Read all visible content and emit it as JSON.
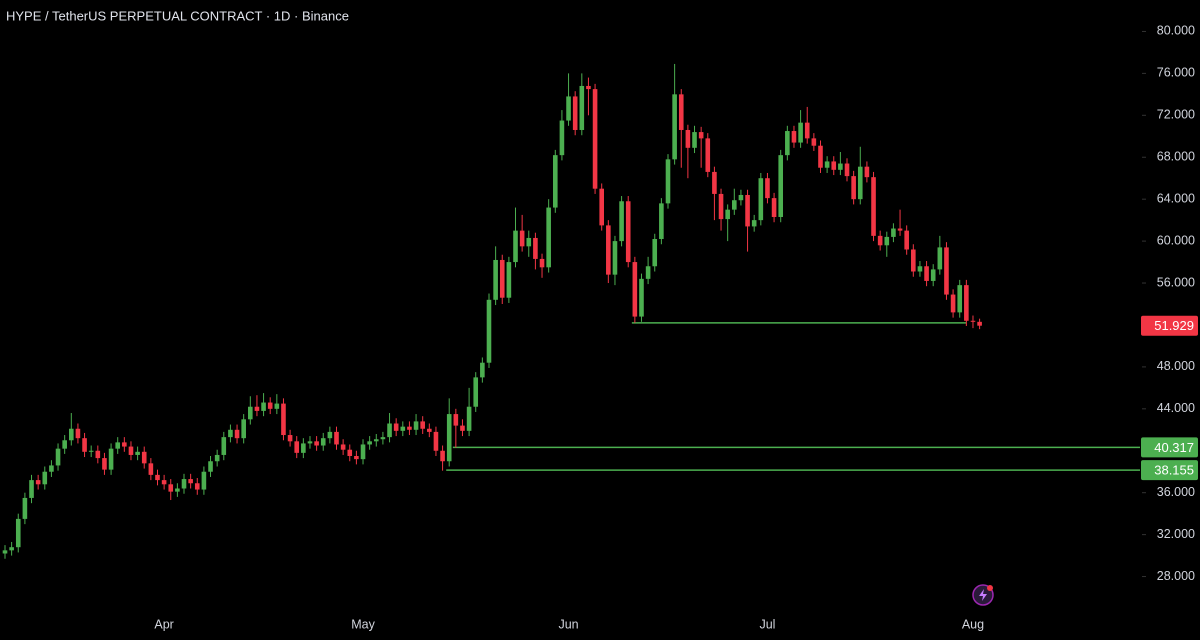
{
  "chart_data": {
    "type": "candlestick",
    "title": "HYPE / TetherUS PERPETUAL CONTRACT · 1D · Binance",
    "categories": [
      null,
      null,
      null,
      null,
      null,
      null,
      null,
      null,
      null,
      null,
      null,
      null,
      null,
      null,
      null,
      null,
      null,
      null,
      null,
      null,
      null,
      null,
      null,
      null,
      "Apr",
      null,
      null,
      null,
      null,
      null,
      null,
      null,
      null,
      null,
      null,
      null,
      null,
      null,
      null,
      null,
      null,
      null,
      null,
      null,
      null,
      null,
      null,
      null,
      null,
      null,
      null,
      null,
      null,
      null,
      "May",
      null,
      null,
      null,
      null,
      null,
      null,
      null,
      null,
      null,
      null,
      null,
      null,
      null,
      null,
      null,
      null,
      null,
      null,
      null,
      null,
      null,
      null,
      null,
      null,
      null,
      null,
      null,
      null,
      null,
      null,
      "Jun",
      null,
      null,
      null,
      null,
      null,
      null,
      null,
      null,
      null,
      null,
      null,
      null,
      null,
      null,
      null,
      null,
      null,
      null,
      null,
      null,
      null,
      null,
      null,
      null,
      null,
      null,
      null,
      null,
      null,
      "Jul",
      null,
      null,
      null,
      null,
      null,
      null,
      null,
      null,
      null,
      null,
      null,
      null,
      null,
      null,
      null,
      null,
      null,
      null,
      null,
      null,
      null,
      null,
      null,
      null,
      null,
      null,
      null,
      null,
      null,
      null,
      "Aug",
      null
    ],
    "series": {
      "open": [
        30.2,
        30.5,
        30.8,
        33.5,
        35.5,
        37.2,
        36.8,
        38.0,
        38.6,
        40.2,
        41.0,
        42.1,
        41.2,
        39.9,
        40.0,
        39.3,
        38.2,
        40.2,
        40.8,
        40.4,
        39.6,
        39.9,
        38.8,
        37.7,
        37.2,
        36.8,
        36.1,
        36.4,
        37.3,
        36.9,
        36.3,
        38.0,
        39.0,
        39.6,
        41.3,
        42.0,
        41.2,
        43.0,
        44.2,
        43.8,
        44.6,
        44.0,
        44.5,
        41.5,
        40.9,
        39.8,
        40.7,
        40.9,
        40.5,
        41.2,
        41.8,
        40.6,
        40.1,
        39.5,
        39.2,
        40.6,
        40.9,
        41.1,
        41.3,
        42.6,
        41.9,
        42.3,
        42.0,
        42.8,
        42.1,
        41.8,
        40.0,
        39.0,
        43.5,
        42.4,
        41.9,
        44.2,
        47.0,
        48.4,
        54.4,
        58.2,
        54.6,
        58.0,
        61.0,
        59.5,
        60.3,
        58.3,
        57.5,
        63.2,
        68.2,
        71.5,
        73.8,
        70.6,
        74.8,
        74.5,
        65.0,
        61.5,
        56.8,
        60.0,
        63.8,
        58.0,
        52.8,
        56.4,
        57.6,
        60.2,
        63.6,
        67.8,
        74.0,
        70.6,
        68.9,
        70.4,
        69.8,
        66.6,
        64.5,
        62.1,
        63.0,
        63.9,
        64.4,
        61.4,
        62.0,
        66.0,
        64.1,
        62.3,
        68.2,
        70.5,
        69.4,
        71.3,
        69.8,
        69.1,
        67.0,
        67.6,
        66.8,
        67.4,
        66.2,
        64.0,
        67.1,
        66.1,
        60.5,
        59.6,
        60.4,
        61.2,
        61.0,
        59.2,
        57.1,
        57.6,
        56.2,
        57.3,
        59.4,
        54.9,
        53.2,
        55.8,
        52.4,
        52.3
      ],
      "high": [
        31.0,
        31.3,
        34.0,
        36.0,
        37.7,
        37.7,
        38.5,
        39.1,
        40.7,
        41.5,
        43.6,
        42.6,
        41.7,
        40.5,
        40.5,
        39.8,
        40.7,
        41.3,
        41.3,
        40.9,
        40.4,
        40.4,
        39.3,
        38.2,
        37.7,
        37.3,
        36.9,
        37.8,
        37.8,
        37.4,
        38.5,
        39.5,
        40.1,
        41.8,
        42.5,
        42.5,
        43.5,
        45.2,
        45.3,
        45.5,
        45.1,
        45.4,
        45.0,
        42.0,
        41.4,
        41.2,
        41.4,
        41.4,
        41.7,
        42.3,
        42.3,
        41.1,
        40.6,
        40.0,
        41.1,
        41.4,
        41.6,
        41.8,
        43.6,
        43.1,
        42.8,
        42.8,
        43.5,
        43.3,
        42.6,
        42.3,
        40.5,
        45.0,
        44.0,
        43.0,
        46.0,
        47.5,
        48.9,
        55.0,
        59.5,
        58.7,
        58.5,
        63.2,
        62.5,
        61.0,
        60.8,
        58.8,
        64.0,
        68.7,
        72.5,
        76.0,
        74.3,
        76.0,
        75.6,
        75.0,
        65.5,
        62.0,
        60.5,
        64.3,
        64.3,
        58.5,
        56.9,
        58.5,
        60.7,
        64.1,
        68.3,
        76.9,
        74.5,
        71.1,
        71.0,
        70.9,
        70.3,
        67.1,
        65.0,
        63.5,
        65.0,
        64.9,
        64.9,
        62.5,
        66.5,
        66.5,
        64.6,
        68.7,
        71.0,
        71.0,
        72.5,
        72.8,
        70.3,
        69.6,
        68.1,
        68.1,
        68.5,
        67.9,
        66.7,
        69.0,
        67.6,
        66.6,
        61.0,
        60.9,
        61.7,
        63.0,
        61.5,
        59.7,
        58.1,
        58.1,
        57.8,
        60.5,
        59.9,
        55.4,
        56.3,
        56.3,
        52.9,
        52.6
      ],
      "low": [
        29.7,
        30.0,
        30.3,
        33.0,
        35.0,
        36.3,
        36.3,
        37.5,
        38.1,
        39.7,
        40.5,
        40.7,
        39.4,
        39.4,
        38.8,
        37.7,
        37.7,
        39.7,
        39.9,
        39.1,
        39.1,
        38.3,
        37.2,
        36.7,
        36.3,
        35.3,
        35.6,
        35.9,
        36.4,
        35.8,
        35.8,
        37.5,
        38.5,
        39.1,
        40.8,
        40.7,
        40.7,
        42.5,
        43.3,
        43.3,
        43.5,
        43.5,
        41.0,
        40.4,
        39.3,
        39.3,
        40.2,
        40.0,
        40.0,
        40.7,
        40.1,
        39.6,
        39.0,
        38.7,
        38.7,
        40.1,
        40.4,
        40.6,
        40.8,
        41.4,
        41.4,
        41.5,
        41.5,
        41.6,
        41.3,
        39.5,
        38.1,
        38.5,
        40.3,
        41.4,
        41.4,
        43.7,
        46.5,
        47.9,
        53.9,
        54.0,
        54.1,
        57.5,
        59.0,
        58.5,
        57.3,
        56.5,
        57.0,
        62.7,
        67.7,
        71.0,
        70.1,
        70.1,
        72.0,
        64.5,
        61.0,
        56.0,
        55.8,
        59.5,
        57.5,
        52.2,
        52.3,
        55.9,
        57.1,
        59.7,
        63.1,
        67.3,
        67.0,
        66.0,
        68.4,
        67.0,
        66.1,
        62.0,
        61.0,
        60.0,
        62.5,
        63.4,
        59.0,
        60.9,
        61.5,
        63.6,
        61.8,
        61.8,
        67.7,
        68.9,
        68.9,
        69.3,
        68.6,
        66.5,
        66.5,
        66.3,
        66.3,
        65.7,
        63.5,
        63.5,
        65.6,
        60.0,
        59.1,
        58.5,
        59.9,
        60.5,
        58.7,
        56.6,
        56.6,
        55.7,
        55.7,
        56.8,
        54.4,
        52.7,
        52.7,
        51.9,
        51.7,
        51.6
      ],
      "close": [
        30.5,
        30.8,
        33.5,
        35.5,
        37.2,
        36.8,
        38.0,
        38.6,
        40.2,
        41.0,
        42.1,
        41.2,
        39.9,
        40.0,
        39.3,
        38.2,
        40.2,
        40.8,
        40.4,
        39.6,
        39.9,
        38.8,
        37.7,
        37.2,
        36.8,
        36.1,
        36.4,
        37.3,
        36.9,
        36.3,
        38.0,
        39.0,
        39.6,
        41.3,
        42.0,
        41.2,
        43.0,
        44.2,
        43.8,
        44.6,
        44.0,
        44.5,
        41.5,
        40.9,
        39.8,
        40.7,
        40.9,
        40.5,
        41.2,
        41.8,
        40.6,
        40.1,
        39.5,
        39.2,
        40.6,
        40.9,
        41.1,
        41.3,
        42.6,
        41.9,
        42.3,
        42.0,
        42.8,
        42.1,
        41.8,
        40.0,
        39.0,
        43.5,
        42.4,
        41.9,
        44.2,
        47.0,
        48.4,
        54.4,
        58.2,
        54.6,
        58.0,
        61.0,
        59.5,
        60.3,
        58.3,
        57.5,
        63.2,
        68.2,
        71.5,
        73.8,
        70.6,
        74.8,
        74.5,
        65.0,
        61.5,
        56.8,
        60.0,
        63.8,
        58.0,
        52.8,
        56.4,
        57.6,
        60.2,
        63.6,
        67.8,
        74.0,
        70.6,
        68.9,
        70.4,
        69.8,
        66.6,
        64.5,
        62.1,
        63.0,
        63.9,
        64.4,
        61.4,
        62.0,
        66.0,
        64.1,
        62.3,
        68.2,
        70.5,
        69.4,
        71.3,
        69.8,
        69.1,
        67.0,
        67.6,
        66.8,
        67.4,
        66.2,
        64.0,
        67.1,
        66.1,
        60.5,
        59.6,
        60.4,
        61.2,
        61.0,
        59.2,
        57.1,
        57.6,
        56.2,
        57.3,
        59.4,
        54.9,
        53.2,
        55.8,
        52.4,
        52.3,
        51.929
      ]
    },
    "up_color": "#4caf50",
    "down_color": "#f23645",
    "last_price_color": "#f23645",
    "ylim": [
      25,
      83
    ],
    "yticks": [
      {
        "value": 28,
        "label": "28.000"
      },
      {
        "value": 32,
        "label": "32.000"
      },
      {
        "value": 36,
        "label": "36.000"
      },
      {
        "value": 40,
        "label": "40.000"
      },
      {
        "value": 44,
        "label": "44.000"
      },
      {
        "value": 48,
        "label": "48.000"
      },
      {
        "value": 52,
        "label": "52.000"
      },
      {
        "value": 56,
        "label": "56.000"
      },
      {
        "value": 60,
        "label": "60.000"
      },
      {
        "value": 64,
        "label": "64.000"
      },
      {
        "value": 68,
        "label": "68.000"
      },
      {
        "value": 72,
        "label": "72.000"
      },
      {
        "value": 76,
        "label": "76.000"
      },
      {
        "value": 80,
        "label": "80.000"
      }
    ],
    "levels": [
      {
        "value": 52.2,
        "from": 95,
        "to": 145,
        "color": "#4caf50",
        "axis_tag": false
      },
      {
        "value": 40.317,
        "from": 68,
        "color": "#4caf50",
        "axis_tag": true
      },
      {
        "value": 38.155,
        "from": 67,
        "color": "#4caf50",
        "axis_tag": true
      }
    ],
    "grid": false
  }
}
